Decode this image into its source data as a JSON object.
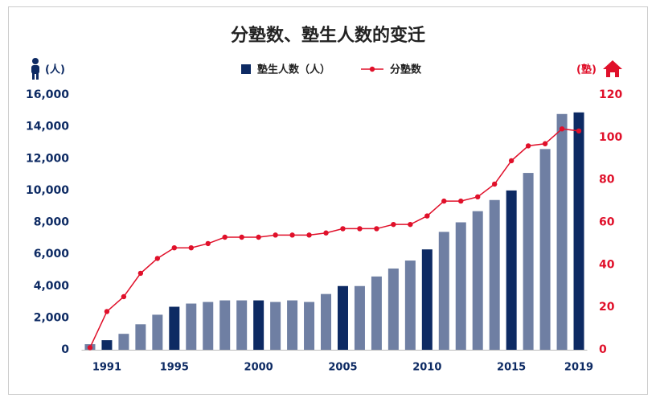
{
  "chart_data": {
    "type": "bar",
    "title": "分塾数、塾生人数的变迁",
    "y_label": "(人)",
    "y2_label": "(塾)",
    "categories": [
      null,
      "1991",
      null,
      null,
      null,
      "1995",
      null,
      null,
      null,
      null,
      "2000",
      null,
      null,
      null,
      null,
      "2005",
      null,
      null,
      null,
      null,
      "2010",
      null,
      null,
      null,
      null,
      "2015",
      null,
      null,
      null,
      "2019"
    ],
    "series": [
      {
        "name": "塾生人数（人）",
        "type": "bar",
        "color": "#0d2a63",
        "colors": [
          "#6f7fa3",
          "#0d2a63",
          "#6f7fa3",
          "#6f7fa3",
          "#6f7fa3",
          "#0d2a63",
          "#6f7fa3",
          "#6f7fa3",
          "#6f7fa3",
          "#6f7fa3",
          "#0d2a63",
          "#6f7fa3",
          "#6f7fa3",
          "#6f7fa3",
          "#6f7fa3",
          "#0d2a63",
          "#6f7fa3",
          "#6f7fa3",
          "#6f7fa3",
          "#6f7fa3",
          "#0d2a63",
          "#6f7fa3",
          "#6f7fa3",
          "#6f7fa3",
          "#6f7fa3",
          "#0d2a63",
          "#6f7fa3",
          "#6f7fa3",
          "#6f7fa3",
          "#0d2a63"
        ],
        "values": [
          350,
          600,
          1000,
          1600,
          2200,
          2700,
          2900,
          3000,
          3100,
          3100,
          3100,
          3000,
          3100,
          3000,
          3500,
          4000,
          4000,
          4600,
          5100,
          5600,
          6300,
          7400,
          8000,
          8700,
          9400,
          10000,
          11100,
          12600,
          14800,
          14900
        ]
      },
      {
        "name": "分塾数",
        "type": "line",
        "axis": "y2",
        "color": "#e0102a",
        "values": [
          1,
          18,
          25,
          36,
          43,
          48,
          48,
          50,
          53,
          53,
          53,
          54,
          54,
          54,
          55,
          57,
          57,
          57,
          59,
          59,
          63,
          70,
          70,
          72,
          78,
          89,
          96,
          97,
          104,
          103
        ]
      }
    ],
    "ylim": [
      0,
      16000
    ],
    "yticks": [
      0,
      {
        "value": 2000,
        "label": "2,000"
      },
      {
        "value": 4000,
        "label": "4,000"
      },
      {
        "value": 6000,
        "label": "6,000"
      },
      {
        "value": 8000,
        "label": "8,000"
      },
      {
        "value": 10000,
        "label": "10,000"
      },
      {
        "value": 12000,
        "label": "12,000"
      },
      {
        "value": 14000,
        "label": "14,000"
      },
      {
        "value": 16000,
        "label": "16,000"
      }
    ],
    "y2lim": [
      0,
      120
    ],
    "y2ticks": [
      0,
      20,
      40,
      60,
      80,
      100,
      120
    ]
  }
}
